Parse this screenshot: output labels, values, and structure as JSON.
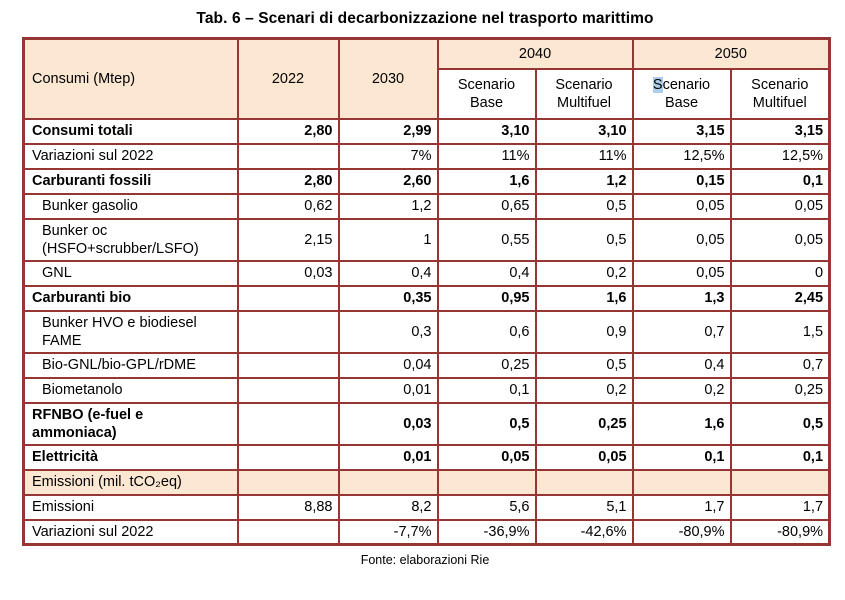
{
  "title": "Tab. 6 – Scenari di decarbonizzazione nel trasporto marittimo",
  "source_note": "Fonte: elaborazioni Rie",
  "colors": {
    "header_bg": "#fce8d2",
    "border": "#963634",
    "selection_highlight": "#aecdeb"
  },
  "table": {
    "corner_label": "Consumi (Mtep)",
    "col_headers": [
      "2022",
      "2030"
    ],
    "year_groups": [
      "2040",
      "2050"
    ],
    "scenario_headers": [
      {
        "hl": "",
        "line1": "Scenario",
        "line2": "Base"
      },
      {
        "hl": "",
        "line1": "Scenario",
        "line2": "Multifuel"
      },
      {
        "hl": "S",
        "line1": "cenario",
        "line2": "Base"
      },
      {
        "hl": "",
        "line1": "Scenario",
        "line2": "Multifuel"
      }
    ],
    "rows": [
      {
        "label": "Consumi totali",
        "bold": true,
        "indent": false,
        "peach": false,
        "values": [
          "2,80",
          "2,99",
          "3,10",
          "3,10",
          "3,15",
          "3,15"
        ]
      },
      {
        "label": "Variazioni sul 2022",
        "bold": false,
        "indent": false,
        "peach": false,
        "values": [
          "",
          "7%",
          "11%",
          "11%",
          "12,5%",
          "12,5%"
        ]
      },
      {
        "label": "Carburanti fossili",
        "bold": true,
        "indent": false,
        "peach": false,
        "values": [
          "2,80",
          "2,60",
          "1,6",
          "1,2",
          "0,15",
          "0,1"
        ]
      },
      {
        "label": "Bunker gasolio",
        "bold": false,
        "indent": true,
        "peach": false,
        "values": [
          "0,62",
          "1,2",
          "0,65",
          "0,5",
          "0,05",
          "0,05"
        ]
      },
      {
        "label": "Bunker oc (HSFO+scrubber/LSFO)",
        "bold": false,
        "indent": true,
        "peach": false,
        "values": [
          "2,15",
          "1",
          "0,55",
          "0,5",
          "0,05",
          "0,05"
        ]
      },
      {
        "label": "GNL",
        "bold": false,
        "indent": true,
        "peach": false,
        "values": [
          "0,03",
          "0,4",
          "0,4",
          "0,2",
          "0,05",
          "0"
        ]
      },
      {
        "label": "Carburanti bio",
        "bold": true,
        "indent": false,
        "peach": false,
        "values": [
          "",
          "0,35",
          "0,95",
          "1,6",
          "1,3",
          "2,45"
        ]
      },
      {
        "label": "Bunker HVO e biodiesel FAME",
        "bold": false,
        "indent": true,
        "peach": false,
        "values": [
          "",
          "0,3",
          "0,6",
          "0,9",
          "0,7",
          "1,5"
        ]
      },
      {
        "label": "Bio-GNL/bio-GPL/rDME",
        "bold": false,
        "indent": true,
        "peach": false,
        "values": [
          "",
          "0,04",
          "0,25",
          "0,5",
          "0,4",
          "0,7"
        ]
      },
      {
        "label": "Biometanolo",
        "bold": false,
        "indent": true,
        "peach": false,
        "values": [
          "",
          "0,01",
          "0,1",
          "0,2",
          "0,2",
          "0,25"
        ]
      },
      {
        "label": "RFNBO (e-fuel e ammoniaca)",
        "bold": true,
        "indent": false,
        "peach": false,
        "values": [
          "",
          "0,03",
          "0,5",
          "0,25",
          "1,6",
          "0,5"
        ]
      },
      {
        "label": "Elettricità",
        "bold": true,
        "indent": false,
        "peach": false,
        "values": [
          "",
          "0,01",
          "0,05",
          "0,05",
          "0,1",
          "0,1"
        ]
      },
      {
        "label": "Emissioni (mil. tCO₂eq)",
        "bold": false,
        "indent": false,
        "peach": true,
        "values": [
          "",
          "",
          "",
          "",
          "",
          ""
        ]
      },
      {
        "label": "Emissioni",
        "bold": false,
        "indent": false,
        "peach": false,
        "values": [
          "8,88",
          "8,2",
          "5,6",
          "5,1",
          "1,7",
          "1,7"
        ]
      },
      {
        "label": "Variazioni sul 2022",
        "bold": false,
        "indent": false,
        "peach": false,
        "values": [
          "",
          "-7,7%",
          "-36,9%",
          "-42,6%",
          "-80,9%",
          "-80,9%"
        ]
      }
    ]
  }
}
